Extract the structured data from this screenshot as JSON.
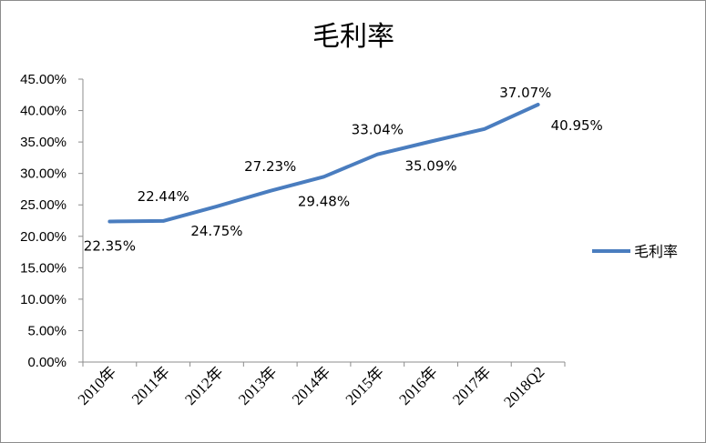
{
  "chart_data": {
    "type": "line",
    "title": "毛利率",
    "categories": [
      "2010年",
      "2011年",
      "2012年",
      "2013年",
      "2014年",
      "2015年",
      "2016年",
      "2017年",
      "2018Q2"
    ],
    "series": [
      {
        "name": "毛利率",
        "values": [
          22.35,
          22.44,
          24.75,
          27.23,
          29.48,
          33.04,
          35.09,
          37.07,
          40.95
        ],
        "labels": [
          "22.35%",
          "22.44%",
          "24.75%",
          "27.23%",
          "29.48%",
          "33.04%",
          "35.09%",
          "37.07%",
          "40.95%"
        ],
        "color": "#4a7dbf"
      }
    ],
    "ylim": [
      0,
      45
    ],
    "yticks": [
      "0.00%",
      "5.00%",
      "10.00%",
      "15.00%",
      "20.00%",
      "25.00%",
      "30.00%",
      "35.00%",
      "40.00%",
      "45.00%"
    ],
    "grid": false,
    "legend": "right"
  }
}
